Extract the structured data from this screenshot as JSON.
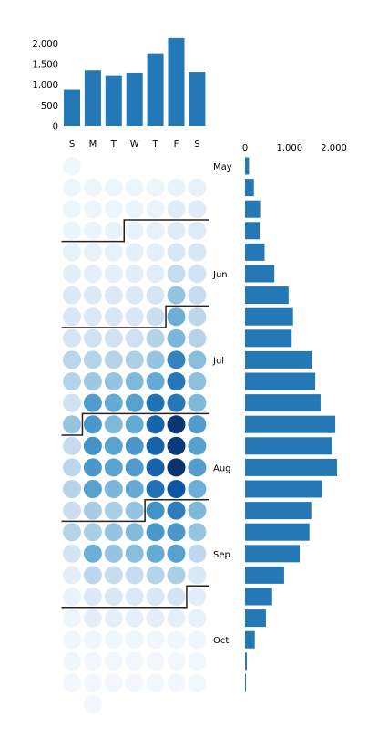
{
  "chart_data": [
    {
      "type": "bar",
      "title": "",
      "orientation": "vertical",
      "categories": [
        "S",
        "M",
        "T",
        "W",
        "T",
        "F",
        "S"
      ],
      "values": [
        870,
        1340,
        1220,
        1280,
        1750,
        2120,
        1300
      ],
      "ylim": [
        0,
        2150
      ],
      "yticks": [
        0,
        500,
        1000,
        1500,
        2000
      ],
      "ytick_labels": [
        "0",
        "500",
        "1,000",
        "1,500",
        "2,000"
      ],
      "color": "#2378b5"
    },
    {
      "type": "heatmap",
      "title": "",
      "layout": "calendar",
      "columns": [
        "S",
        "M",
        "T",
        "W",
        "T",
        "F",
        "S"
      ],
      "color_scale": "Blues",
      "value_range": [
        0,
        1
      ],
      "start_weekday": 0,
      "rows": [
        [
          0.04,
          null,
          null,
          null,
          null,
          null,
          null
        ],
        [
          0.05,
          0.05,
          0.05,
          0.05,
          0.05,
          0.07,
          0.08
        ],
        [
          0.05,
          0.05,
          0.05,
          0.06,
          0.06,
          0.12,
          0.12
        ],
        [
          0.06,
          0.06,
          0.07,
          0.07,
          0.08,
          0.12,
          0.13
        ],
        [
          0.08,
          0.08,
          0.08,
          0.09,
          0.09,
          0.16,
          0.16
        ],
        [
          0.1,
          0.09,
          0.09,
          0.1,
          0.11,
          0.25,
          0.19
        ],
        [
          0.14,
          0.14,
          0.14,
          0.14,
          0.17,
          0.4,
          0.24
        ],
        [
          0.16,
          0.14,
          0.16,
          0.16,
          0.23,
          0.5,
          0.28
        ],
        [
          0.17,
          0.2,
          0.2,
          0.21,
          0.31,
          0.46,
          0.3
        ],
        [
          0.29,
          0.3,
          0.3,
          0.33,
          0.4,
          0.68,
          0.43
        ],
        [
          0.3,
          0.38,
          0.4,
          0.45,
          0.52,
          0.73,
          0.42
        ],
        [
          0.2,
          0.58,
          0.52,
          0.56,
          0.75,
          0.73,
          0.45
        ],
        [
          0.4,
          0.6,
          0.45,
          0.52,
          0.8,
          0.98,
          0.58
        ],
        [
          0.25,
          0.62,
          0.55,
          0.6,
          0.8,
          0.96,
          0.56
        ],
        [
          0.28,
          0.6,
          0.55,
          0.58,
          0.8,
          0.99,
          0.57
        ],
        [
          0.3,
          0.56,
          0.46,
          0.52,
          0.75,
          0.85,
          0.5
        ],
        [
          0.23,
          0.35,
          0.34,
          0.4,
          0.62,
          0.7,
          0.45
        ],
        [
          0.3,
          0.34,
          0.4,
          0.44,
          0.6,
          0.6,
          0.4
        ],
        [
          0.18,
          0.5,
          0.4,
          0.43,
          0.52,
          0.56,
          0.27
        ],
        [
          0.1,
          0.28,
          0.24,
          0.25,
          0.3,
          0.34,
          0.15
        ],
        [
          0.07,
          0.14,
          0.15,
          0.14,
          0.15,
          0.18,
          0.11
        ],
        [
          0.05,
          0.1,
          0.09,
          0.09,
          0.1,
          0.09,
          0.08
        ],
        [
          0.04,
          0.04,
          0.04,
          0.04,
          0.04,
          0.04,
          0.04
        ],
        [
          0.04,
          0.03,
          0.03,
          0.03,
          0.03,
          0.03,
          0.03
        ],
        [
          0.03,
          0.03,
          0.03,
          0.03,
          0.03,
          0.03,
          0.03
        ],
        [
          null,
          0.03,
          null,
          null,
          null,
          null,
          null
        ]
      ],
      "month_boundaries": [
        {
          "row": 3,
          "weekday": 3
        },
        {
          "row": 7,
          "weekday": 5
        },
        {
          "row": 12,
          "weekday": 1
        },
        {
          "row": 16,
          "weekday": 4
        },
        {
          "row": 20,
          "weekday": 6
        }
      ]
    },
    {
      "type": "bar",
      "title": "",
      "orientation": "horizontal",
      "values": [
        90,
        200,
        340,
        330,
        440,
        660,
        980,
        1080,
        1050,
        1500,
        1580,
        1700,
        2030,
        1960,
        2070,
        1730,
        1490,
        1450,
        1230,
        880,
        610,
        470,
        220,
        40,
        20
      ],
      "xlim": [
        0,
        2150
      ],
      "xticks": [
        0,
        1000,
        2000
      ],
      "xtick_labels": [
        "0",
        "1,000",
        "2,000"
      ],
      "month_labels": [
        {
          "row": 0,
          "label": "May"
        },
        {
          "row": 5,
          "label": "Jun"
        },
        {
          "row": 9,
          "label": "Jul"
        },
        {
          "row": 14,
          "label": "Aug"
        },
        {
          "row": 18,
          "label": "Sep"
        },
        {
          "row": 22,
          "label": "Oct"
        }
      ],
      "color": "#2378b5"
    }
  ]
}
